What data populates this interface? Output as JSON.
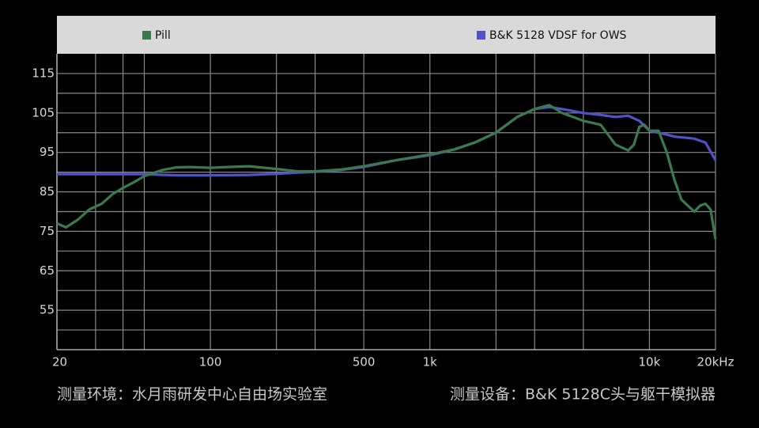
{
  "chart_data": {
    "type": "line",
    "legend": {
      "position": "top",
      "background": "#d9d9d9"
    },
    "log_x": true,
    "xlim": [
      20,
      20000
    ],
    "xticks": [
      20,
      100,
      500,
      {
        "value": 1000,
        "label": "1k"
      },
      {
        "value": 10000,
        "label": "10k"
      },
      {
        "value": 20000,
        "label": "20kHz"
      }
    ],
    "xgrid": [
      20,
      30,
      40,
      50,
      100,
      200,
      300,
      500,
      1000,
      2000,
      3000,
      5000,
      10000,
      20000
    ],
    "ylim": [
      45,
      120
    ],
    "yticks": [
      55,
      65,
      75,
      85,
      95,
      105,
      115
    ],
    "ygrid": [
      50,
      55,
      60,
      65,
      70,
      75,
      80,
      85,
      90,
      95,
      100,
      105,
      110,
      115
    ],
    "grid": true,
    "series": [
      {
        "name": "Pill",
        "color": "#3b7a4e",
        "x": [
          20,
          22,
          25,
          28,
          32,
          36,
          40,
          45,
          50,
          60,
          70,
          80,
          100,
          120,
          150,
          200,
          250,
          300,
          400,
          500,
          700,
          1000,
          1300,
          1600,
          2000,
          2500,
          3000,
          3500,
          4000,
          5000,
          5500,
          6000,
          7000,
          8000,
          8500,
          9000,
          9500,
          10000,
          11000,
          12000,
          13000,
          14000,
          16000,
          17000,
          18000,
          19000,
          20000
        ],
        "values": [
          77,
          76,
          78,
          80.5,
          82,
          84.5,
          86,
          87.5,
          89,
          90.5,
          91.2,
          91.3,
          91.1,
          91.3,
          91.5,
          90.8,
          90.2,
          90.2,
          90.7,
          91.5,
          93,
          94.5,
          95.8,
          97.5,
          100,
          104,
          106,
          107,
          105,
          103,
          102.5,
          102,
          97,
          95.5,
          97,
          101.5,
          102,
          100.5,
          100.5,
          95,
          88,
          83,
          80,
          81.5,
          82,
          80.5,
          73
        ]
      },
      {
        "name": "B&K 5128 VDSF for OWS",
        "color": "#5151c9",
        "x": [
          20,
          50,
          70,
          100,
          150,
          200,
          300,
          400,
          500,
          700,
          1000,
          1300,
          1600,
          2000,
          2500,
          3000,
          3500,
          4000,
          5000,
          6000,
          7000,
          8000,
          9000,
          10000,
          12000,
          13000,
          16000,
          18000,
          20000
        ],
        "values": [
          89.5,
          89.5,
          89.2,
          89.2,
          89.3,
          89.6,
          90.1,
          90.6,
          91.3,
          93,
          94.3,
          95.8,
          97.5,
          100,
          104,
          106,
          106.5,
          106,
          105,
          104.5,
          104,
          104.3,
          103,
          100.5,
          99.5,
          99,
          98.5,
          97.5,
          93
        ]
      }
    ],
    "footnotes": [
      "测量环境：水月雨研发中心自由场实验室",
      "测量设备：B&K 5128C头与躯干模拟器"
    ]
  }
}
